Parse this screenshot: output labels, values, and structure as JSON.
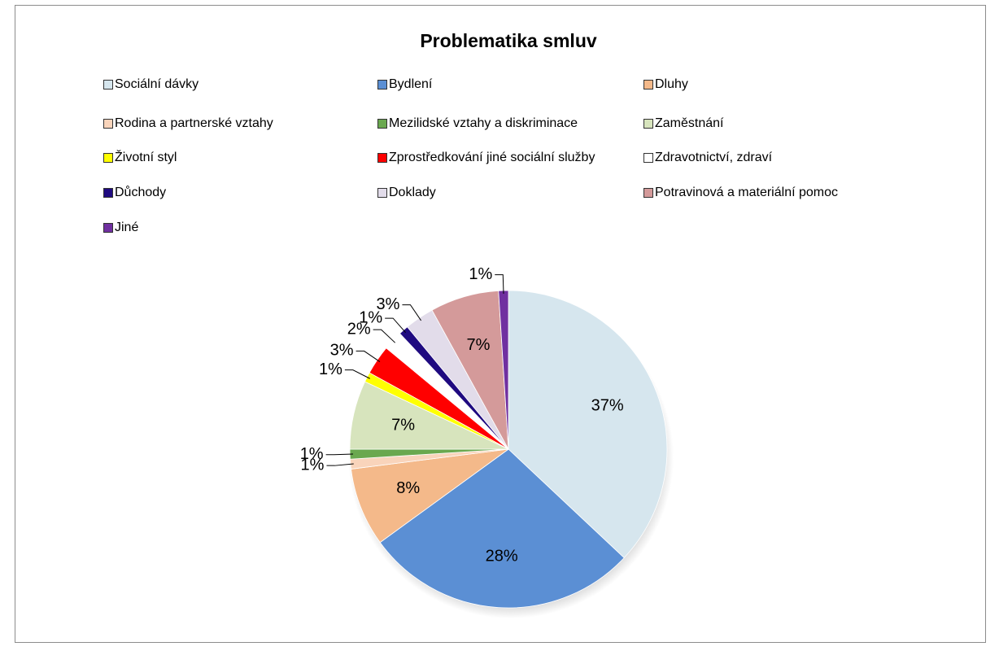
{
  "chart_data": {
    "type": "pie",
    "title": "Problematika smluv",
    "categories": [
      "Sociální dávky",
      "Bydlení",
      "Dluhy",
      "Rodina a partnerské vztahy",
      "Mezilidské vztahy a diskriminace",
      "Zaměstnání",
      "Životní styl",
      "Zprostředkování jiné sociální služby",
      "Zdravotnictví, zdraví",
      "Důchody",
      "Doklady",
      "Potravinová a materiální pomoc",
      "Jiné"
    ],
    "values": [
      37,
      28,
      8,
      1,
      1,
      7,
      1,
      3,
      2,
      1,
      3,
      7,
      1
    ],
    "value_labels": [
      "37%",
      "28%",
      "8%",
      "1%",
      "1%",
      "7%",
      "1%",
      "3%",
      "2%",
      "1%",
      "3%",
      "7%",
      "1%"
    ],
    "colors": [
      "#d6e6ee",
      "#5b8fd4",
      "#f4b98a",
      "#f9d4bb",
      "#6aa84f",
      "#d7e4bd",
      "#ffff00",
      "#ff0000",
      "#ffffff",
      "#1f0a80",
      "#e2dcea",
      "#d49a9a",
      "#7030a0"
    ],
    "legend": "top"
  }
}
